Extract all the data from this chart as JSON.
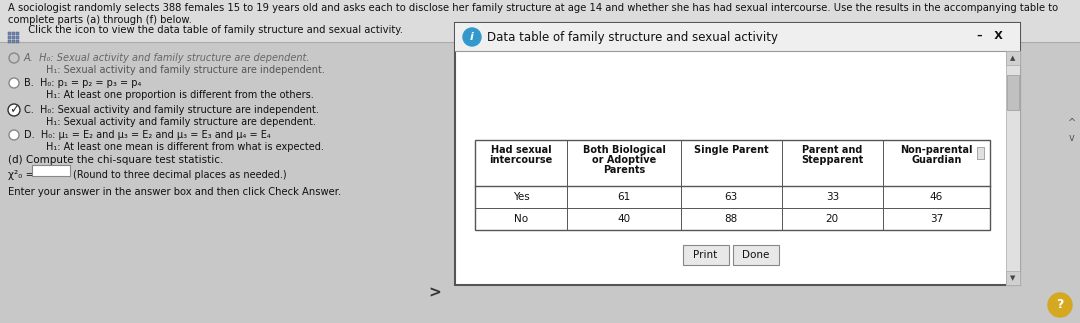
{
  "bg_color": "#c8c8c8",
  "bg_top_color": "#d8d8d8",
  "main_text_line1": "A sociologist randomly selects 388 females 15 to 19 years old and asks each to disclose her family structure at age 14 and whether she has had sexual intercourse. Use the results in the accompanying table to",
  "main_text_line2": "complete parts (a) through (f) below.",
  "main_text_line3": "  Click the icon to view the data table of family structure and sexual activity.",
  "option_A_line1": "H₀: Sexual activity and family structure are dependent.",
  "option_A_line2": "H₁: Sexual activity and family structure are independent.",
  "option_B_line1": "H₀: p₁ = p₂ = p₃ = p₄",
  "option_B_line2": "H₁: At least one proportion is different from the others.",
  "option_C_line1": "H₀: Sexual activity and family structure are independent.",
  "option_C_line2": "H₁: Sexual activity and family structure are dependent.",
  "option_D_line1": "H₀: μ₁ = E₂ and μ₃ = E₂ and μ₃ = E₃ and μ₄ = E₄",
  "option_D_line2": "H₁: At least one mean is different from what is expected.",
  "part_d_text": "(d) Compute the chi-square test statistic.",
  "chi_label": "χ²₀ =",
  "chi_hint": "(Round to three decimal places as needed.)",
  "bottom_text": "Enter your answer in the answer box and then click Check Answer.",
  "popup_title": "Data table of family structure and sexual activity",
  "table_headers": [
    "Had sexual\nintercourse",
    "Both Biological\nor Adoptive\nParents",
    "Single Parent",
    "Parent and\nStepparent",
    "Non-parental\nGuardian"
  ],
  "table_rows": [
    [
      "Yes",
      "61",
      "63",
      "33",
      "46"
    ],
    [
      "No",
      "40",
      "88",
      "20",
      "37"
    ]
  ],
  "print_btn": "Print",
  "done_btn": "Done"
}
